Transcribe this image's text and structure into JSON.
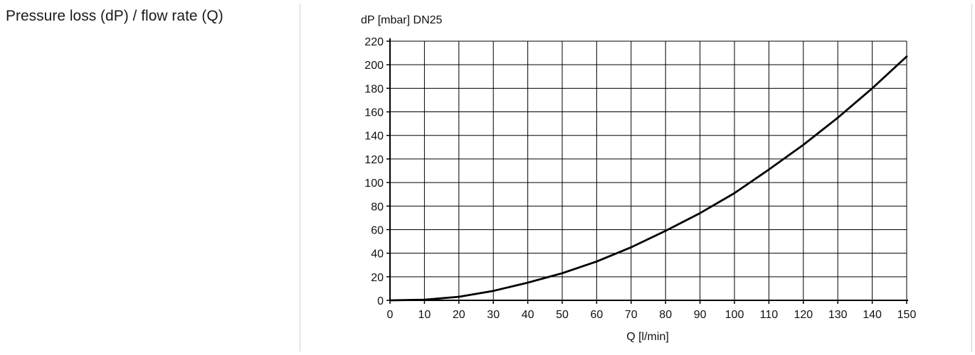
{
  "row_label": "Pressure loss (dP) / flow rate (Q)",
  "chart_data": {
    "type": "line",
    "ylabel": "dP [mbar] DN25",
    "xlabel": "Q [l/min]",
    "xlim": [
      0,
      150
    ],
    "ylim": [
      0,
      220
    ],
    "x_ticks": [
      0,
      10,
      20,
      30,
      40,
      50,
      60,
      70,
      80,
      90,
      100,
      110,
      120,
      130,
      140,
      150
    ],
    "y_ticks": [
      0,
      20,
      40,
      60,
      80,
      100,
      120,
      140,
      160,
      180,
      200,
      220
    ],
    "grid": true,
    "series": [
      {
        "x": [
          0,
          10,
          20,
          30,
          40,
          50,
          60,
          70,
          80,
          90,
          100,
          110,
          120,
          130,
          140,
          150
        ],
        "y": [
          0,
          0.5,
          3,
          8,
          15,
          23,
          33,
          45,
          59,
          74,
          91,
          111,
          132,
          155,
          180,
          207
        ]
      }
    ],
    "line_color": "#000000",
    "grid_color": "#000000"
  }
}
